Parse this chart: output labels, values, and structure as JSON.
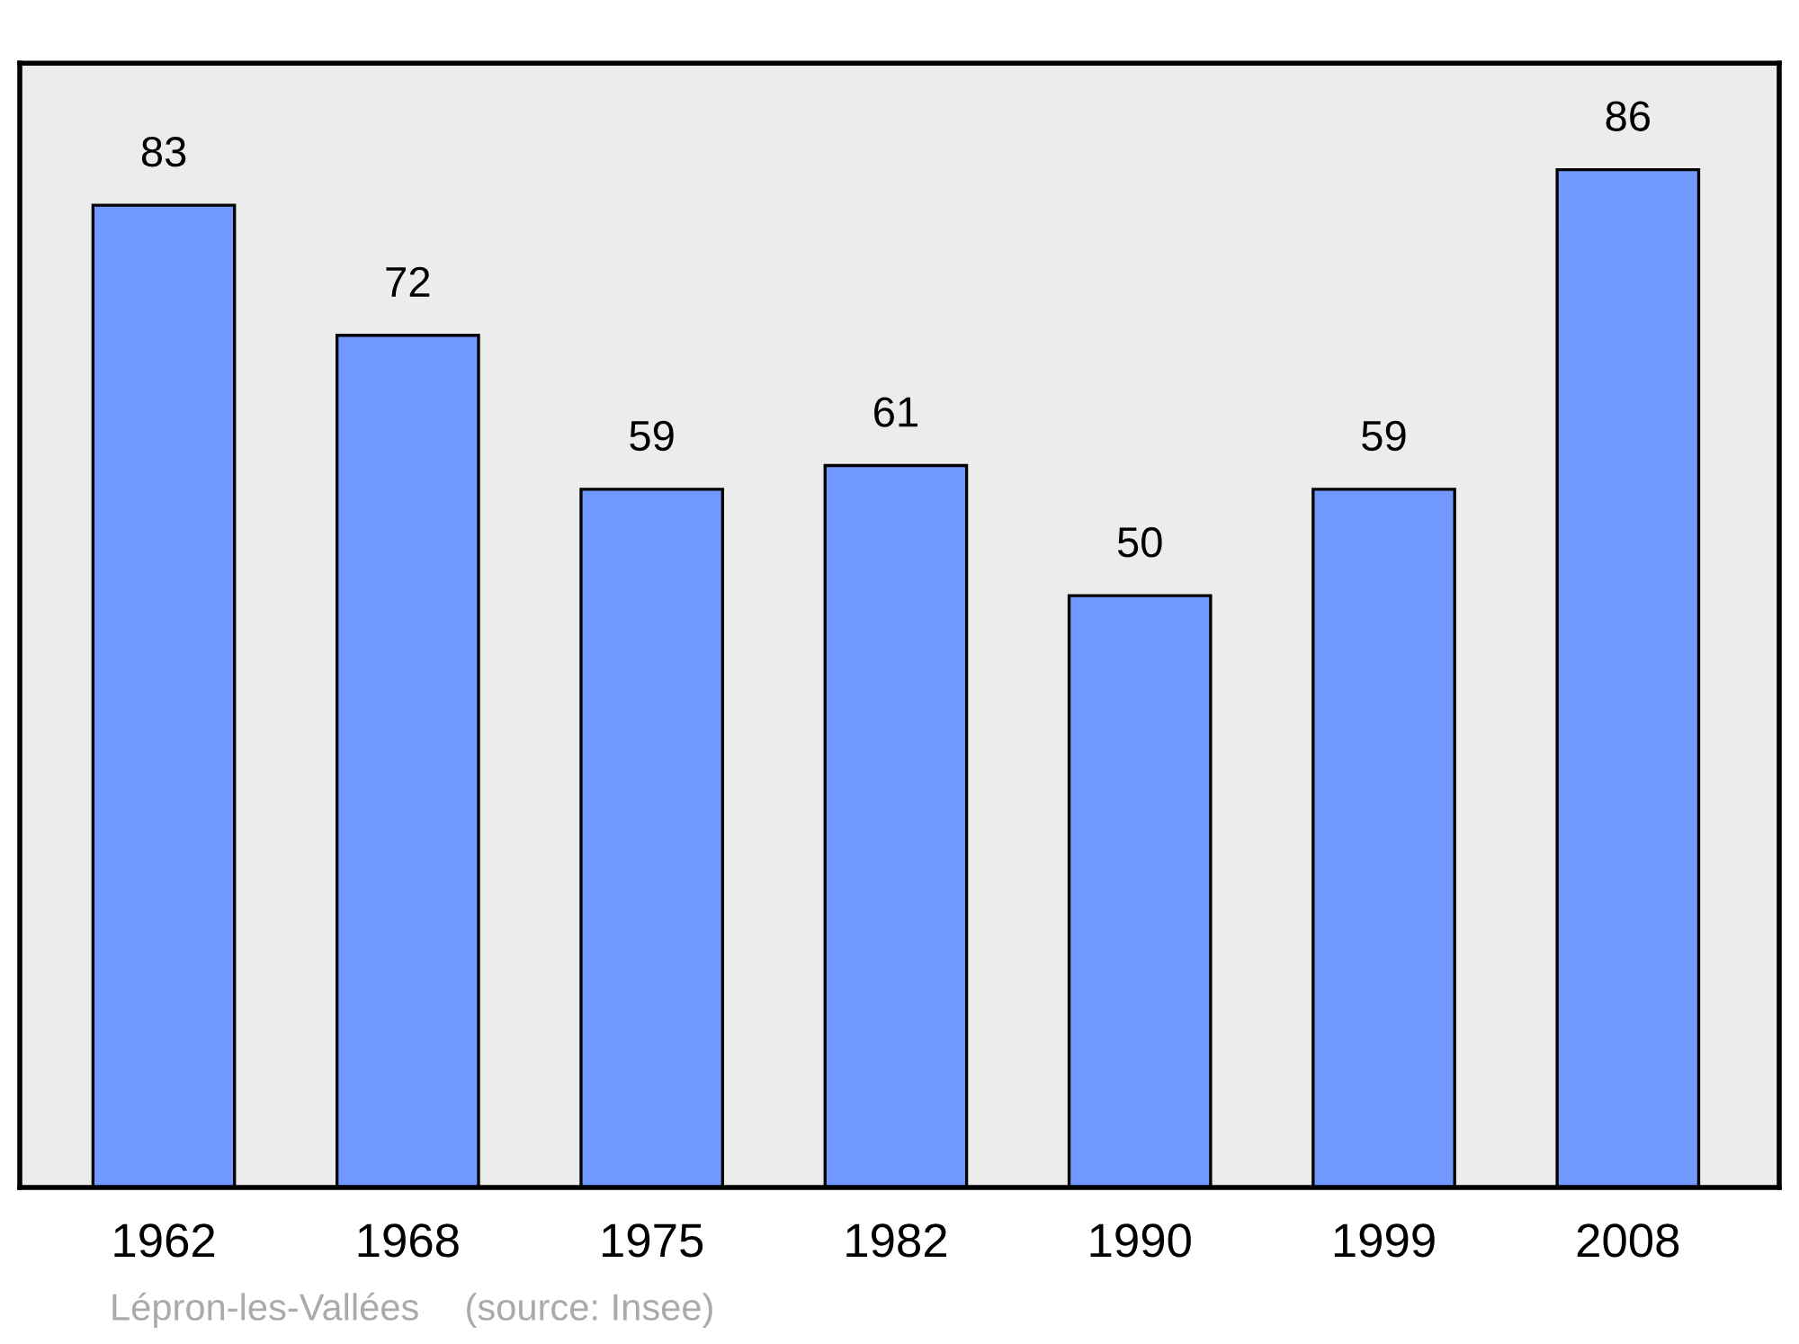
{
  "chart_data": {
    "type": "bar",
    "categories": [
      "1962",
      "1968",
      "1975",
      "1982",
      "1990",
      "1999",
      "2008"
    ],
    "values": [
      83,
      72,
      59,
      61,
      50,
      59,
      86
    ],
    "color": "#7299ff",
    "ylim": [
      0,
      95
    ],
    "data_labels": true,
    "grid": false,
    "legend": false,
    "annotations": [
      "Lépron-les-Vallées",
      "(source: Insee)"
    ]
  }
}
